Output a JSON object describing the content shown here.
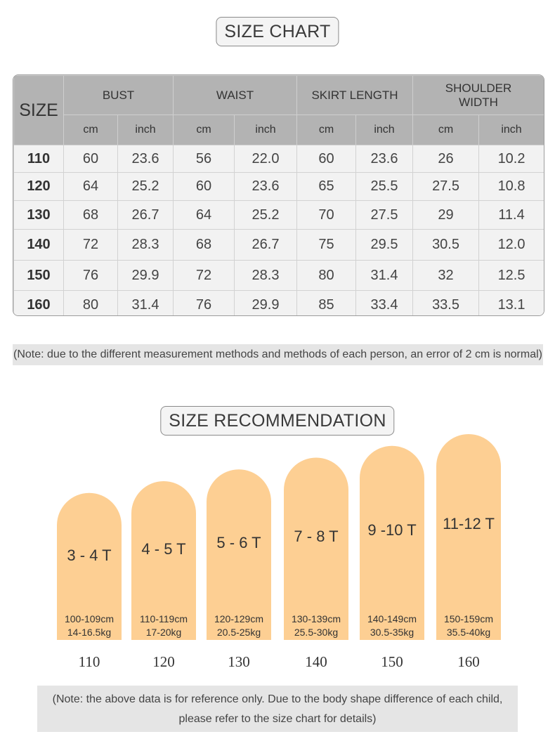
{
  "size_chart": {
    "title": "SIZE CHART",
    "size_header": "SIZE",
    "groups": [
      "BUST",
      "WAIST",
      "SKIRT LENGTH",
      "SHOULDER WIDTH"
    ],
    "group_lines": [
      [
        "BUST"
      ],
      [
        "WAIST"
      ],
      [
        "SKIRT LENGTH"
      ],
      [
        "SHOULDER",
        "WIDTH"
      ]
    ],
    "units": [
      "cm",
      "inch"
    ],
    "rows": [
      {
        "size": "110",
        "bust_cm": "60",
        "bust_inch": "23.6",
        "waist_cm": "56",
        "waist_inch": "22.0",
        "skirt_cm": "60",
        "skirt_inch": "23.6",
        "shoulder_cm": "26",
        "shoulder_inch": "10.2"
      },
      {
        "size": "120",
        "bust_cm": "64",
        "bust_inch": "25.2",
        "waist_cm": "60",
        "waist_inch": "23.6",
        "skirt_cm": "65",
        "skirt_inch": "25.5",
        "shoulder_cm": "27.5",
        "shoulder_inch": "10.8"
      },
      {
        "size": "130",
        "bust_cm": "68",
        "bust_inch": "26.7",
        "waist_cm": "64",
        "waist_inch": "25.2",
        "skirt_cm": "70",
        "skirt_inch": "27.5",
        "shoulder_cm": "29",
        "shoulder_inch": "11.4"
      },
      {
        "size": "140",
        "bust_cm": "72",
        "bust_inch": "28.3",
        "waist_cm": "68",
        "waist_inch": "26.7",
        "skirt_cm": "75",
        "skirt_inch": "29.5",
        "shoulder_cm": "30.5",
        "shoulder_inch": "12.0"
      },
      {
        "size": "150",
        "bust_cm": "76",
        "bust_inch": "29.9",
        "waist_cm": "72",
        "waist_inch": "28.3",
        "skirt_cm": "80",
        "skirt_inch": "31.4",
        "shoulder_cm": "32",
        "shoulder_inch": "12.5"
      },
      {
        "size": "160",
        "bust_cm": "80",
        "bust_inch": "31.4",
        "waist_cm": "76",
        "waist_inch": "29.9",
        "skirt_cm": "85",
        "skirt_inch": "33.4",
        "shoulder_cm": "33.5",
        "shoulder_inch": "13.1"
      }
    ],
    "note": "(Note: due to the different measurement methods and methods of each person, an error of 2 cm is normal)"
  },
  "size_recommendation": {
    "title": "SIZE RECOMMENDATION",
    "note_line1": "(Note: the above data is for reference only. Due to the body shape difference of each child,",
    "note_line2": "please refer to the size chart for details)"
  },
  "colors": {
    "bar_fill": "#fdcf93",
    "header_gray": "#b3b3b3",
    "row_gray": "#f2f2f2",
    "note_gray": "#e5e5e5"
  },
  "chart_data": {
    "type": "bar",
    "categories": [
      "110",
      "120",
      "130",
      "140",
      "150",
      "160"
    ],
    "series": [
      {
        "values": [
          110,
          120,
          130,
          140,
          150,
          160
        ],
        "age_labels": [
          "3 - 4 T",
          "4 - 5 T",
          "5 - 6 T",
          "7 - 8 T",
          "9 -10 T",
          "11-12 T"
        ],
        "height_labels": [
          "100-109cm",
          "110-119cm",
          "120-129cm",
          "130-139cm",
          "140-149cm",
          "150-159cm"
        ],
        "weight_labels": [
          "14-16.5kg",
          "17-20kg",
          "20.5-25kg",
          "25.5-30kg",
          "30.5-35kg",
          "35.5-40kg"
        ]
      }
    ],
    "title": "SIZE RECOMMENDATION",
    "xlabel": "",
    "ylabel": "",
    "ylim": [
      80,
      160
    ],
    "grid": false
  }
}
